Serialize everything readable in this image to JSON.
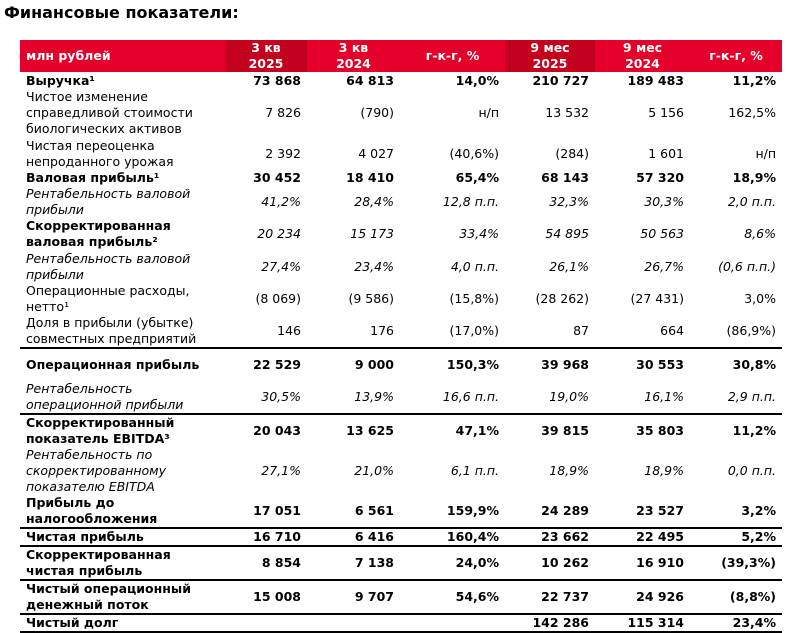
{
  "title": "Финансовые показатели:",
  "table": {
    "header": {
      "label": "млн рублей",
      "columns": [
        {
          "top": "3 кв",
          "bottom": "2025"
        },
        {
          "top": "3 кв",
          "bottom": "2024"
        },
        {
          "top": "г-к-г, %"
        },
        {
          "top": "9 мес",
          "bottom": "2025"
        },
        {
          "top": "9 мес",
          "bottom": "2024"
        },
        {
          "top": "г-к-г, %"
        }
      ]
    },
    "rows": [
      {
        "label": "Выручка¹",
        "cells": [
          "73 868",
          "64 813",
          "14,0%",
          "210 727",
          "189 483",
          "11,2%"
        ]
      },
      {
        "label": "Чистое изменение справедливой стоимости биологических активов",
        "cells": [
          "7 826",
          "(790)",
          "н/п",
          "13 532",
          "5 156",
          "162,5%"
        ]
      },
      {
        "label": "Чистая переоценка непроданного урожая",
        "cells": [
          "2 392",
          "4 027",
          "(40,6%)",
          "(284)",
          "1 601",
          "н/п"
        ]
      },
      {
        "label": "Валовая прибыль¹",
        "cells": [
          "30 452",
          "18 410",
          "65,4%",
          "68 143",
          "57 320",
          "18,9%"
        ]
      },
      {
        "label": "Рентабельность валовой прибыли",
        "cells": [
          "41,2%",
          "28,4%",
          "12,8 п.п.",
          "32,3%",
          "30,3%",
          "2,0 п.п."
        ]
      },
      {
        "label": "Скорректированная валовая прибыль²",
        "cells": [
          "20 234",
          "15 173",
          "33,4%",
          "54 895",
          "50 563",
          "8,6%"
        ]
      },
      {
        "label": "Рентабельность валовой прибыли",
        "cells": [
          "27,4%",
          "23,4%",
          "4,0 п.п.",
          "26,1%",
          "26,7%",
          "(0,6 п.п.)"
        ]
      },
      {
        "label": "Операционные расходы, нетто¹",
        "cells": [
          "(8 069)",
          "(9 586)",
          "(15,8%)",
          "(28 262)",
          "(27 431)",
          "3,0%"
        ]
      },
      {
        "label": "Доля в прибыли (убытке) совместных предприятий",
        "cells": [
          "146",
          "176",
          "(17,0%)",
          "87",
          "664",
          "(86,9%)"
        ]
      },
      {
        "label": "Операционная прибыль",
        "cells": [
          "22 529",
          "9 000",
          "150,3%",
          "39 968",
          "30 553",
          "30,8%"
        ]
      },
      {
        "label": "Рентабельность операционной прибыли",
        "cells": [
          "30,5%",
          "13,9%",
          "16,6 п.п.",
          "19,0%",
          "16,1%",
          "2,9 п.п."
        ]
      },
      {
        "label": "Скорректированный показатель EBITDA³",
        "cells": [
          "20 043",
          "13 625",
          "47,1%",
          "39 815",
          "35 803",
          "11,2%"
        ]
      },
      {
        "label": "Рентабельность по скорректированному показателю EBITDA",
        "cells": [
          "27,1%",
          "21,0%",
          "6,1 п.п.",
          "18,9%",
          "18,9%",
          "0,0 п.п."
        ]
      },
      {
        "label": "Прибыль до налогообложения",
        "cells": [
          "17 051",
          "6 561",
          "159,9%",
          "24 289",
          "23 527",
          "3,2%"
        ]
      },
      {
        "label": "Чистая прибыль",
        "cells": [
          "16 710",
          "6 416",
          "160,4%",
          "23 662",
          "22 495",
          "5,2%"
        ]
      },
      {
        "label": "Скорректированная чистая прибыль",
        "cells": [
          "8 854",
          "7 138",
          "24,0%",
          "10 262",
          "16 910",
          "(39,3%)"
        ]
      },
      {
        "label": "Чистый операционный денежный поток",
        "cells": [
          "15 008",
          "9 707",
          "54,6%",
          "22 737",
          "24 926",
          "(8,8%)"
        ]
      },
      {
        "label": "Чистый долг",
        "cells": [
          null,
          null,
          null,
          "142 286",
          "115 314",
          "23,4%"
        ]
      }
    ]
  }
}
